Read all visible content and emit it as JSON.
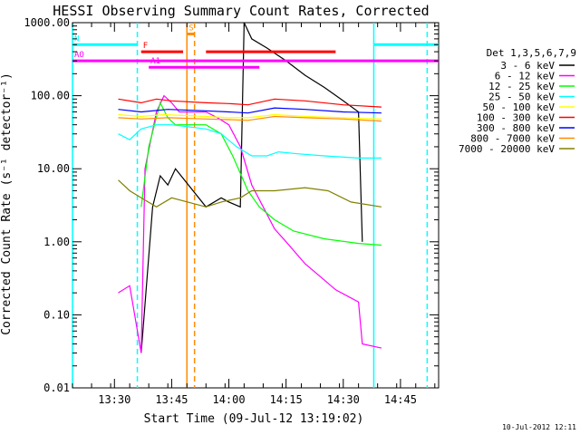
{
  "chart_data": {
    "type": "line",
    "title": "HESSI Observing Summary Count Rates, Corrected",
    "xlabel": "Start Time (09-Jul-12 13:19:02)",
    "ylabel": "Corrected Count Rate (s⁻¹ detector⁻¹)",
    "x_axis_type": "time",
    "xlim": [
      "13:19",
      "14:55"
    ],
    "x_ticks": [
      "13:30",
      "13:45",
      "14:00",
      "14:15",
      "14:30",
      "14:45"
    ],
    "y_scale": "log",
    "ylim": [
      0.01,
      1000
    ],
    "y_ticks": [
      "0.01",
      "0.10",
      "1.00",
      "10.00",
      "100.00",
      "1000.00"
    ],
    "grid": false,
    "legend_position": "right",
    "legend_title": "Det 1,3,5,6,7,9",
    "timestamp": "10-Jul-2012 12:11",
    "series": [
      {
        "name": "3 - 6 keV",
        "color": "#000000",
        "points": [
          [
            "13:37",
            0.03
          ],
          [
            "13:40",
            3
          ],
          [
            "13:42",
            8
          ],
          [
            "13:44",
            6
          ],
          [
            "13:46",
            10
          ],
          [
            "13:54",
            3
          ],
          [
            "13:58",
            4
          ],
          [
            "14:00",
            3.5
          ],
          [
            "14:03",
            3
          ],
          [
            "14:04",
            1000
          ],
          [
            "14:06",
            600
          ],
          [
            "14:10",
            450
          ],
          [
            "14:15",
            300
          ],
          [
            "14:20",
            190
          ],
          [
            "14:25",
            130
          ],
          [
            "14:30",
            85
          ],
          [
            "14:34",
            60
          ],
          [
            "14:35",
            1
          ]
        ]
      },
      {
        "name": "6 - 12 keV",
        "color": "#ff00ff",
        "points": [
          [
            "13:31",
            0.2
          ],
          [
            "13:34",
            0.25
          ],
          [
            "13:37",
            0.03
          ],
          [
            "13:38",
            10
          ],
          [
            "13:41",
            60
          ],
          [
            "13:43",
            100
          ],
          [
            "13:45",
            80
          ],
          [
            "13:47",
            60
          ],
          [
            "13:54",
            60
          ],
          [
            "13:57",
            50
          ],
          [
            "14:00",
            40
          ],
          [
            "14:03",
            20
          ],
          [
            "14:06",
            6
          ],
          [
            "14:09",
            3
          ],
          [
            "14:12",
            1.5
          ],
          [
            "14:15",
            1
          ],
          [
            "14:20",
            0.5
          ],
          [
            "14:25",
            0.3
          ],
          [
            "14:28",
            0.22
          ],
          [
            "14:34",
            0.15
          ],
          [
            "14:35",
            0.04
          ],
          [
            "14:40",
            0.035
          ]
        ]
      },
      {
        "name": "12 - 25 keV",
        "color": "#00ff00",
        "points": [
          [
            "13:37",
            3
          ],
          [
            "13:39",
            20
          ],
          [
            "13:42",
            80
          ],
          [
            "13:44",
            50
          ],
          [
            "13:46",
            40
          ],
          [
            "13:54",
            40
          ],
          [
            "13:58",
            30
          ],
          [
            "14:01",
            15
          ],
          [
            "14:05",
            5
          ],
          [
            "14:08",
            3
          ],
          [
            "14:12",
            2
          ],
          [
            "14:17",
            1.4
          ],
          [
            "14:25",
            1.1
          ],
          [
            "14:34",
            0.95
          ],
          [
            "14:40",
            0.9
          ]
        ]
      },
      {
        "name": "25 - 50 keV",
        "color": "#00ffff",
        "points": [
          [
            "13:31",
            30
          ],
          [
            "13:34",
            25
          ],
          [
            "13:37",
            35
          ],
          [
            "13:41",
            40
          ],
          [
            "13:45",
            40
          ],
          [
            "13:54",
            35
          ],
          [
            "13:58",
            30
          ],
          [
            "14:02",
            20
          ],
          [
            "14:06",
            15
          ],
          [
            "14:10",
            15
          ],
          [
            "14:13",
            17
          ],
          [
            "14:18",
            16
          ],
          [
            "14:25",
            15
          ],
          [
            "14:34",
            14
          ],
          [
            "14:40",
            14
          ]
        ]
      },
      {
        "name": "50 - 100 keV",
        "color": "#ffff00",
        "points": [
          [
            "13:31",
            55
          ],
          [
            "13:37",
            52
          ],
          [
            "13:43",
            55
          ],
          [
            "13:54",
            52
          ],
          [
            "14:00",
            50
          ],
          [
            "14:05",
            50
          ],
          [
            "14:12",
            55
          ],
          [
            "14:20",
            52
          ],
          [
            "14:30",
            50
          ],
          [
            "14:40",
            48
          ]
        ]
      },
      {
        "name": "100 - 300 keV",
        "color": "#ff0000",
        "points": [
          [
            "13:31",
            90
          ],
          [
            "13:37",
            80
          ],
          [
            "13:41",
            90
          ],
          [
            "13:45",
            85
          ],
          [
            "13:54",
            80
          ],
          [
            "14:00",
            78
          ],
          [
            "14:05",
            75
          ],
          [
            "14:12",
            90
          ],
          [
            "14:20",
            85
          ],
          [
            "14:30",
            75
          ],
          [
            "14:40",
            70
          ]
        ]
      },
      {
        "name": "300 - 800 keV",
        "color": "#0000ff",
        "points": [
          [
            "13:31",
            65
          ],
          [
            "13:37",
            60
          ],
          [
            "13:44",
            65
          ],
          [
            "13:54",
            62
          ],
          [
            "14:00",
            60
          ],
          [
            "14:05",
            58
          ],
          [
            "14:12",
            68
          ],
          [
            "14:20",
            65
          ],
          [
            "14:30",
            60
          ],
          [
            "14:40",
            58
          ]
        ]
      },
      {
        "name": "800 - 7000 keV",
        "color": "#ff8c00",
        "points": [
          [
            "13:31",
            50
          ],
          [
            "13:37",
            48
          ],
          [
            "13:44",
            50
          ],
          [
            "13:54",
            48
          ],
          [
            "14:00",
            47
          ],
          [
            "14:05",
            46
          ],
          [
            "14:12",
            52
          ],
          [
            "14:20",
            50
          ],
          [
            "14:30",
            48
          ],
          [
            "14:40",
            45
          ]
        ]
      },
      {
        "name": "7000 - 20000 keV",
        "color": "#808000",
        "points": [
          [
            "13:31",
            7
          ],
          [
            "13:34",
            5
          ],
          [
            "13:37",
            4
          ],
          [
            "13:41",
            3
          ],
          [
            "13:45",
            4
          ],
          [
            "13:54",
            3
          ],
          [
            "13:58",
            3.5
          ],
          [
            "14:03",
            4
          ],
          [
            "14:06",
            5
          ],
          [
            "14:12",
            5
          ],
          [
            "14:20",
            5.5
          ],
          [
            "14:26",
            5
          ],
          [
            "14:32",
            3.5
          ],
          [
            "14:40",
            3
          ]
        ]
      }
    ],
    "vertical_markers": [
      {
        "time": "13:19",
        "color": "#00ffff",
        "style": "solid"
      },
      {
        "time": "13:36",
        "color": "#00ffff",
        "style": "dashed"
      },
      {
        "time": "13:49",
        "color": "#ff8c00",
        "style": "solid"
      },
      {
        "time": "13:51",
        "color": "#ff8c00",
        "style": "dashed"
      },
      {
        "time": "14:38",
        "color": "#00ffff",
        "style": "solid"
      },
      {
        "time": "14:52",
        "color": "#00ffff",
        "style": "dashed"
      }
    ],
    "flag_bars": [
      {
        "label": "N",
        "color": "#00ffff",
        "segments": [
          [
            "13:19",
            "13:36"
          ],
          [
            "14:38",
            "14:55"
          ]
        ],
        "level": 500
      },
      {
        "label": "S",
        "color": "#ff8c00",
        "segments": [
          [
            "13:49",
            "13:51"
          ]
        ],
        "level": 700
      },
      {
        "label": "F",
        "color": "#ff0000",
        "segments": [
          [
            "13:37",
            "13:48"
          ],
          [
            "13:54",
            "14:28"
          ]
        ],
        "level": 400
      },
      {
        "label": "AO",
        "color": "#ff00ff",
        "segments": [
          [
            "13:19",
            "14:55"
          ]
        ],
        "level": 300
      },
      {
        "label": "A1",
        "color": "#ff00ff",
        "segments": [
          [
            "13:39",
            "14:08"
          ]
        ],
        "level": 245
      }
    ]
  }
}
